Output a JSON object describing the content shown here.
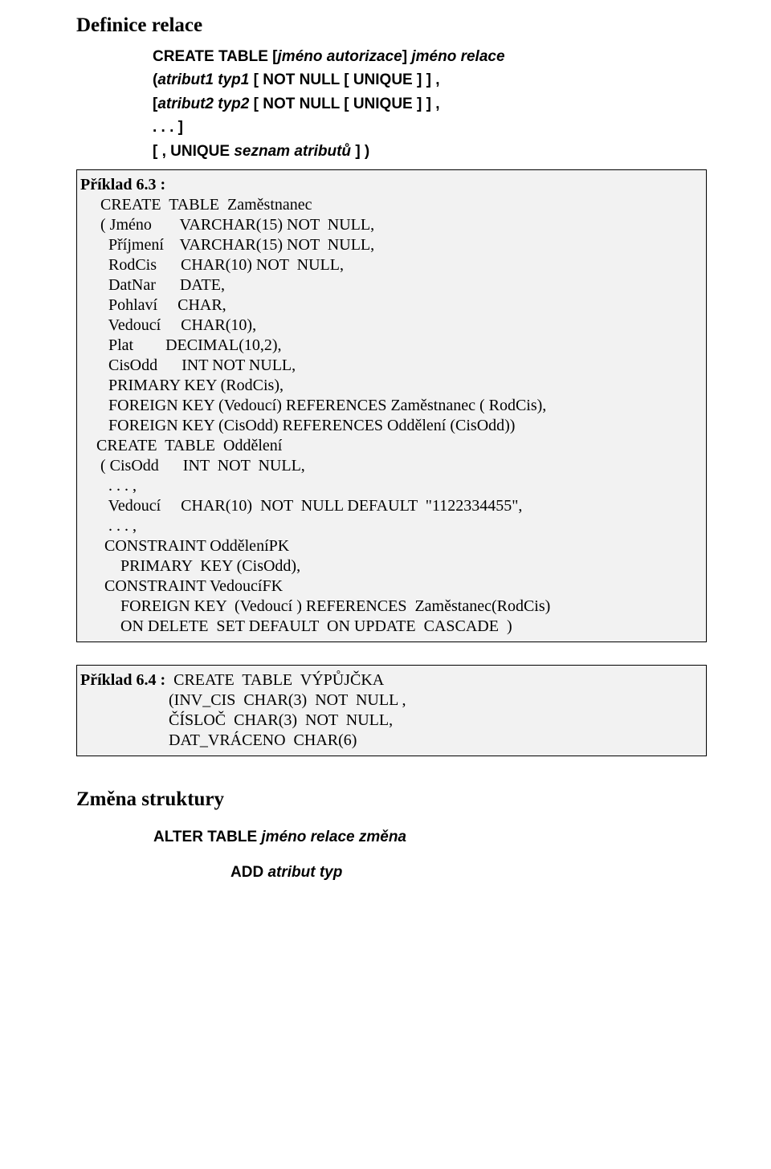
{
  "heading1": "Definice relace",
  "syntax": {
    "l1_pre": "CREATE TABLE  [",
    "l1_i1": "jméno autorizace",
    "l1_mid": "] ",
    "l1_i2": "jméno relace",
    "l2_pre": "(",
    "l2_i1": "atribut1 typ1",
    "l2_mid": " [ NOT NULL [ UNIQUE ] ] ,",
    "l3_pre": " [",
    "l3_i1": "atribut2 typ2",
    "l3_mid": " [ NOT NULL [ UNIQUE ] ] ,",
    "l4": " . . . ]",
    "l5_pre": " [ , UNIQUE ",
    "l5_i1": "seznam atributů",
    "l5_mid": " ] )"
  },
  "box1": {
    "title": "Příklad 6.3 :",
    "lines": [
      "     CREATE  TABLE  Zaměstnanec",
      "     ( Jméno       VARCHAR(15) NOT  NULL,",
      "       Příjmení    VARCHAR(15) NOT  NULL,",
      "       RodCis      CHAR(10) NOT  NULL,",
      "       DatNar      DATE,",
      "       Pohlaví     CHAR,",
      "       Vedoucí     CHAR(10),",
      "       Plat        DECIMAL(10,2),",
      "       CisOdd      INT NOT NULL,",
      "       PRIMARY KEY (RodCis),",
      "       FOREIGN KEY (Vedoucí) REFERENCES Zaměstnanec ( RodCis),",
      "       FOREIGN KEY (CisOdd) REFERENCES Oddělení (CisOdd))",
      "",
      "    CREATE  TABLE  Oddělení",
      "     ( CisOdd      INT  NOT  NULL,",
      "       . . . ,",
      "       Vedoucí     CHAR(10)  NOT  NULL DEFAULT  \"1122334455\",",
      "       . . . ,",
      "      CONSTRAINT OdděleníPK",
      "          PRIMARY  KEY (CisOdd),",
      "      CONSTRAINT VedoucíFK",
      "          FOREIGN KEY  (Vedoucí ) REFERENCES  Zaměstanec(RodCis)",
      "          ON DELETE  SET DEFAULT  ON UPDATE  CASCADE  )"
    ]
  },
  "box2": {
    "title_pre": "Příklad 6.4 :",
    "title_rest": "  CREATE  TABLE  VÝPŮJČKA",
    "lines": [
      "                      (INV_CIS  CHAR(3)  NOT  NULL ,",
      "                      ČÍSLOČ  CHAR(3)  NOT  NULL,",
      "                      DAT_VRÁCENO  CHAR(6)"
    ]
  },
  "heading2": "Změna struktury",
  "alter": {
    "pre": "ALTER TABLE ",
    "i1": "jméno relace",
    "mid": "  ",
    "i2": "změna"
  },
  "add": {
    "pre": "ADD ",
    "i1": "atribut  typ"
  }
}
